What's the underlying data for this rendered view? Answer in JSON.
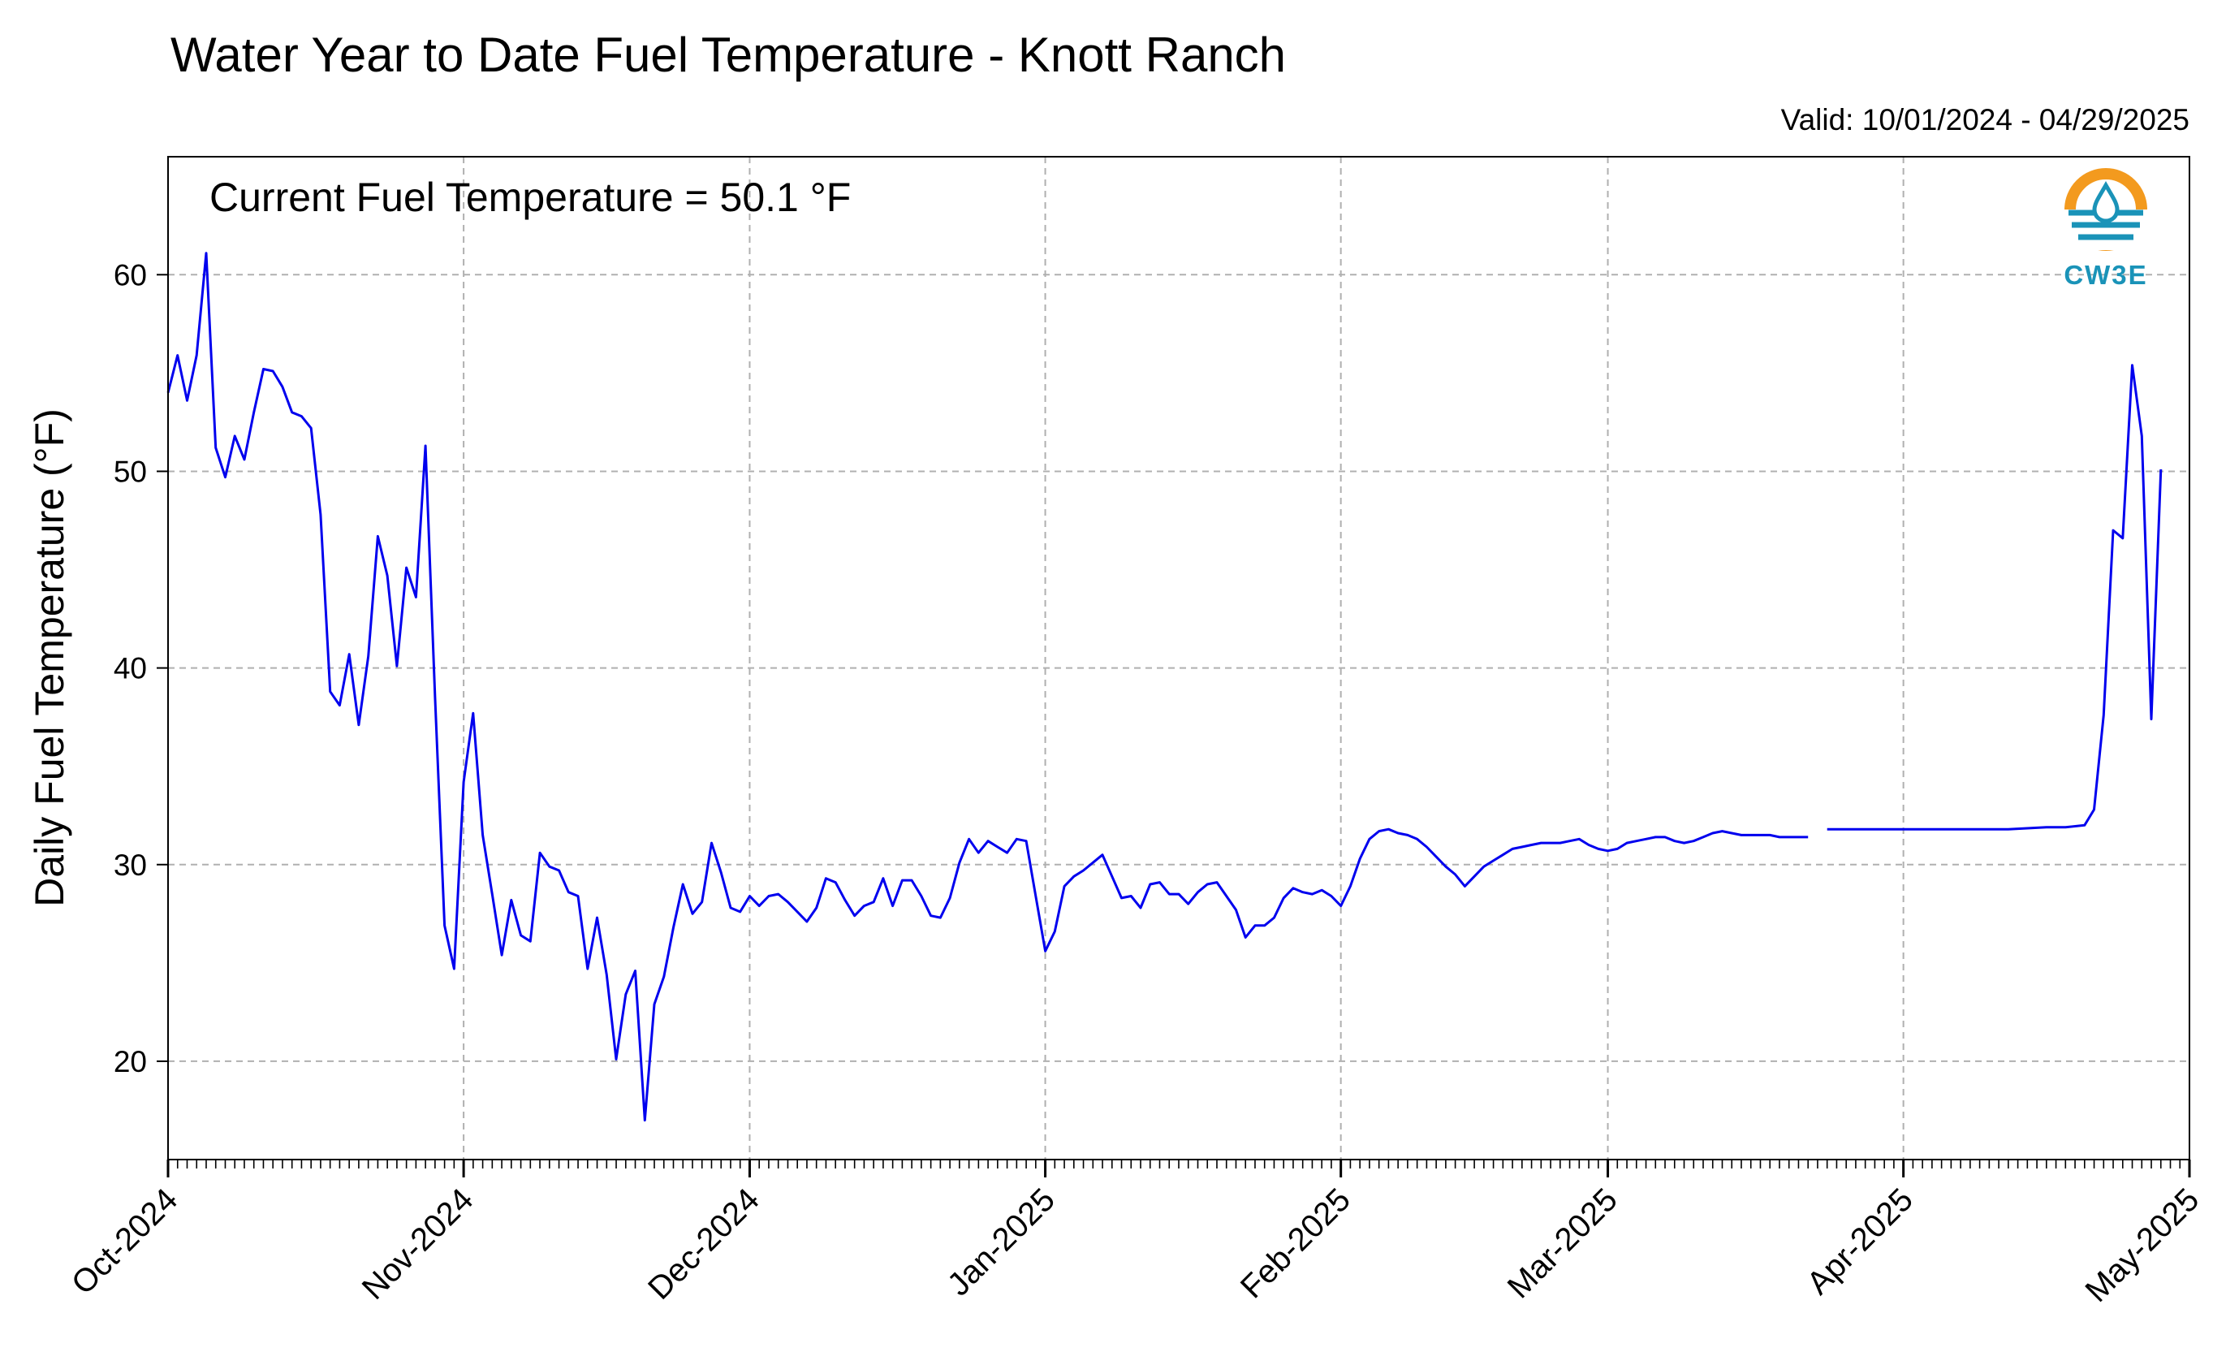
{
  "chart_data": {
    "type": "line",
    "title": "Water Year to Date Fuel Temperature - Knott Ranch",
    "subtitle": "Valid: 10/01/2024 - 04/29/2025",
    "annotation": "Current Fuel Temperature = 50.1 °F",
    "ylabel": "Daily Fuel Temperature (°F)",
    "xlabel": "",
    "ylim": [
      15,
      66
    ],
    "xlim": [
      "2024-10-01",
      "2025-05-01"
    ],
    "yticks": [
      20,
      30,
      40,
      50,
      60
    ],
    "xtick_labels": [
      "Oct-2024",
      "Nov-2024",
      "Dec-2024",
      "Jan-2025",
      "Feb-2025",
      "Mar-2025",
      "Apr-2025",
      "May-2025"
    ],
    "xtick_dates": [
      "2024-10-01",
      "2024-11-01",
      "2024-12-01",
      "2025-01-01",
      "2025-02-01",
      "2025-03-01",
      "2025-04-01",
      "2025-05-01"
    ],
    "grid": true,
    "line_color": "#0000ee",
    "series": [
      {
        "segments": [
          [
            [
              "2024-10-01",
              54.0
            ],
            [
              "2024-10-02",
              55.9
            ],
            [
              "2024-10-03",
              53.6
            ],
            [
              "2024-10-04",
              55.9
            ],
            [
              "2024-10-05",
              61.1
            ],
            [
              "2024-10-06",
              51.2
            ],
            [
              "2024-10-07",
              49.7
            ],
            [
              "2024-10-08",
              51.8
            ],
            [
              "2024-10-09",
              50.6
            ],
            [
              "2024-10-10",
              53.0
            ],
            [
              "2024-10-11",
              55.2
            ],
            [
              "2024-10-12",
              55.1
            ],
            [
              "2024-10-13",
              54.3
            ],
            [
              "2024-10-14",
              53.0
            ],
            [
              "2024-10-15",
              52.8
            ],
            [
              "2024-10-16",
              52.2
            ],
            [
              "2024-10-17",
              47.8
            ],
            [
              "2024-10-18",
              38.8
            ],
            [
              "2024-10-19",
              38.1
            ],
            [
              "2024-10-20",
              40.7
            ],
            [
              "2024-10-21",
              37.1
            ],
            [
              "2024-10-22",
              40.6
            ],
            [
              "2024-10-23",
              46.7
            ],
            [
              "2024-10-24",
              44.7
            ],
            [
              "2024-10-25",
              40.1
            ],
            [
              "2024-10-26",
              45.1
            ],
            [
              "2024-10-27",
              43.6
            ],
            [
              "2024-10-28",
              51.3
            ],
            [
              "2024-10-29",
              38.5
            ],
            [
              "2024-10-30",
              26.9
            ],
            [
              "2024-10-31",
              24.7
            ],
            [
              "2024-11-01",
              34.2
            ],
            [
              "2024-11-02",
              37.7
            ],
            [
              "2024-11-03",
              31.5
            ],
            [
              "2024-11-04",
              28.5
            ],
            [
              "2024-11-05",
              25.4
            ],
            [
              "2024-11-06",
              28.2
            ],
            [
              "2024-11-07",
              26.4
            ],
            [
              "2024-11-08",
              26.1
            ],
            [
              "2024-11-09",
              30.6
            ],
            [
              "2024-11-10",
              29.9
            ],
            [
              "2024-11-11",
              29.7
            ],
            [
              "2024-11-12",
              28.6
            ],
            [
              "2024-11-13",
              28.4
            ],
            [
              "2024-11-14",
              24.7
            ],
            [
              "2024-11-15",
              27.3
            ],
            [
              "2024-11-16",
              24.4
            ],
            [
              "2024-11-17",
              20.1
            ],
            [
              "2024-11-18",
              23.4
            ],
            [
              "2024-11-19",
              24.6
            ],
            [
              "2024-11-20",
              17.0
            ],
            [
              "2024-11-21",
              22.9
            ],
            [
              "2024-11-22",
              24.3
            ],
            [
              "2024-11-23",
              26.8
            ],
            [
              "2024-11-24",
              29.0
            ],
            [
              "2024-11-25",
              27.5
            ],
            [
              "2024-11-26",
              28.1
            ],
            [
              "2024-11-27",
              31.1
            ],
            [
              "2024-11-28",
              29.6
            ],
            [
              "2024-11-29",
              27.8
            ],
            [
              "2024-11-30",
              27.6
            ],
            [
              "2024-12-01",
              28.4
            ],
            [
              "2024-12-02",
              27.9
            ],
            [
              "2024-12-03",
              28.4
            ],
            [
              "2024-12-04",
              28.5
            ],
            [
              "2024-12-05",
              28.1
            ],
            [
              "2024-12-06",
              27.6
            ],
            [
              "2024-12-07",
              27.1
            ],
            [
              "2024-12-08",
              27.8
            ],
            [
              "2024-12-09",
              29.3
            ],
            [
              "2024-12-10",
              29.1
            ],
            [
              "2024-12-11",
              28.2
            ],
            [
              "2024-12-12",
              27.4
            ],
            [
              "2024-12-13",
              27.9
            ],
            [
              "2024-12-14",
              28.1
            ],
            [
              "2024-12-15",
              29.3
            ],
            [
              "2024-12-16",
              27.9
            ],
            [
              "2024-12-17",
              29.2
            ],
            [
              "2024-12-18",
              29.2
            ],
            [
              "2024-12-19",
              28.4
            ],
            [
              "2024-12-20",
              27.4
            ],
            [
              "2024-12-21",
              27.3
            ],
            [
              "2024-12-22",
              28.3
            ],
            [
              "2024-12-23",
              30.1
            ],
            [
              "2024-12-24",
              31.3
            ],
            [
              "2024-12-25",
              30.6
            ],
            [
              "2024-12-26",
              31.2
            ],
            [
              "2024-12-27",
              30.9
            ],
            [
              "2024-12-28",
              30.6
            ],
            [
              "2024-12-29",
              31.3
            ],
            [
              "2024-12-30",
              31.2
            ],
            [
              "2024-12-31",
              28.4
            ],
            [
              "2025-01-01",
              25.6
            ],
            [
              "2025-01-02",
              26.6
            ],
            [
              "2025-01-03",
              28.9
            ],
            [
              "2025-01-04",
              29.4
            ],
            [
              "2025-01-05",
              29.7
            ],
            [
              "2025-01-06",
              30.1
            ],
            [
              "2025-01-07",
              30.5
            ],
            [
              "2025-01-08",
              29.4
            ],
            [
              "2025-01-09",
              28.3
            ],
            [
              "2025-01-10",
              28.4
            ],
            [
              "2025-01-11",
              27.8
            ],
            [
              "2025-01-12",
              29.0
            ],
            [
              "2025-01-13",
              29.1
            ],
            [
              "2025-01-14",
              28.5
            ],
            [
              "2025-01-15",
              28.5
            ],
            [
              "2025-01-16",
              28.0
            ],
            [
              "2025-01-17",
              28.6
            ],
            [
              "2025-01-18",
              29.0
            ],
            [
              "2025-01-19",
              29.1
            ],
            [
              "2025-01-20",
              28.4
            ],
            [
              "2025-01-21",
              27.7
            ],
            [
              "2025-01-22",
              26.3
            ],
            [
              "2025-01-23",
              26.9
            ],
            [
              "2025-01-24",
              26.9
            ],
            [
              "2025-01-25",
              27.3
            ],
            [
              "2025-01-26",
              28.3
            ],
            [
              "2025-01-27",
              28.8
            ],
            [
              "2025-01-28",
              28.6
            ],
            [
              "2025-01-29",
              28.5
            ],
            [
              "2025-01-30",
              28.7
            ],
            [
              "2025-01-31",
              28.4
            ],
            [
              "2025-02-01",
              27.9
            ],
            [
              "2025-02-02",
              28.9
            ],
            [
              "2025-02-03",
              30.3
            ],
            [
              "2025-02-04",
              31.3
            ],
            [
              "2025-02-05",
              31.7
            ],
            [
              "2025-02-06",
              31.8
            ],
            [
              "2025-02-07",
              31.6
            ],
            [
              "2025-02-08",
              31.5
            ],
            [
              "2025-02-09",
              31.3
            ],
            [
              "2025-02-10",
              30.9
            ],
            [
              "2025-02-11",
              30.4
            ],
            [
              "2025-02-12",
              29.9
            ],
            [
              "2025-02-13",
              29.5
            ],
            [
              "2025-02-14",
              28.9
            ],
            [
              "2025-02-15",
              29.4
            ],
            [
              "2025-02-16",
              29.9
            ],
            [
              "2025-02-17",
              30.2
            ],
            [
              "2025-02-18",
              30.5
            ],
            [
              "2025-02-19",
              30.8
            ],
            [
              "2025-02-20",
              30.9
            ],
            [
              "2025-02-21",
              31.0
            ],
            [
              "2025-02-22",
              31.1
            ],
            [
              "2025-02-23",
              31.1
            ],
            [
              "2025-02-24",
              31.1
            ],
            [
              "2025-02-25",
              31.2
            ],
            [
              "2025-02-26",
              31.3
            ],
            [
              "2025-02-27",
              31.0
            ],
            [
              "2025-02-28",
              30.8
            ],
            [
              "2025-03-01",
              30.7
            ],
            [
              "2025-03-02",
              30.8
            ],
            [
              "2025-03-03",
              31.1
            ],
            [
              "2025-03-04",
              31.2
            ],
            [
              "2025-03-05",
              31.3
            ],
            [
              "2025-03-06",
              31.4
            ],
            [
              "2025-03-07",
              31.4
            ],
            [
              "2025-03-08",
              31.2
            ],
            [
              "2025-03-09",
              31.1
            ],
            [
              "2025-03-10",
              31.2
            ],
            [
              "2025-03-11",
              31.4
            ],
            [
              "2025-03-12",
              31.6
            ],
            [
              "2025-03-13",
              31.7
            ],
            [
              "2025-03-14",
              31.6
            ],
            [
              "2025-03-15",
              31.5
            ],
            [
              "2025-03-16",
              31.5
            ],
            [
              "2025-03-17",
              31.5
            ],
            [
              "2025-03-18",
              31.5
            ],
            [
              "2025-03-19",
              31.4
            ],
            [
              "2025-03-20",
              31.4
            ],
            [
              "2025-03-21",
              31.4
            ],
            [
              "2025-03-22",
              31.4
            ]
          ],
          [
            [
              "2025-03-24",
              31.8
            ],
            [
              "2025-03-28",
              31.8
            ],
            [
              "2025-04-01",
              31.8
            ],
            [
              "2025-04-05",
              31.8
            ],
            [
              "2025-04-08",
              31.8
            ],
            [
              "2025-04-12",
              31.8
            ],
            [
              "2025-04-16",
              31.9
            ],
            [
              "2025-04-18",
              31.9
            ],
            [
              "2025-04-20",
              32.0
            ],
            [
              "2025-04-21",
              32.8
            ],
            [
              "2025-04-22",
              37.6
            ],
            [
              "2025-04-23",
              47.0
            ],
            [
              "2025-04-24",
              46.6
            ],
            [
              "2025-04-25",
              55.4
            ],
            [
              "2025-04-26",
              51.8
            ],
            [
              "2025-04-27",
              37.4
            ],
            [
              "2025-04-28",
              50.1
            ]
          ]
        ]
      }
    ]
  },
  "logo": {
    "text": "CW3E",
    "ring_color": "#f39a1e",
    "wave_color": "#1a93b8",
    "text_color": "#1a93b8"
  }
}
